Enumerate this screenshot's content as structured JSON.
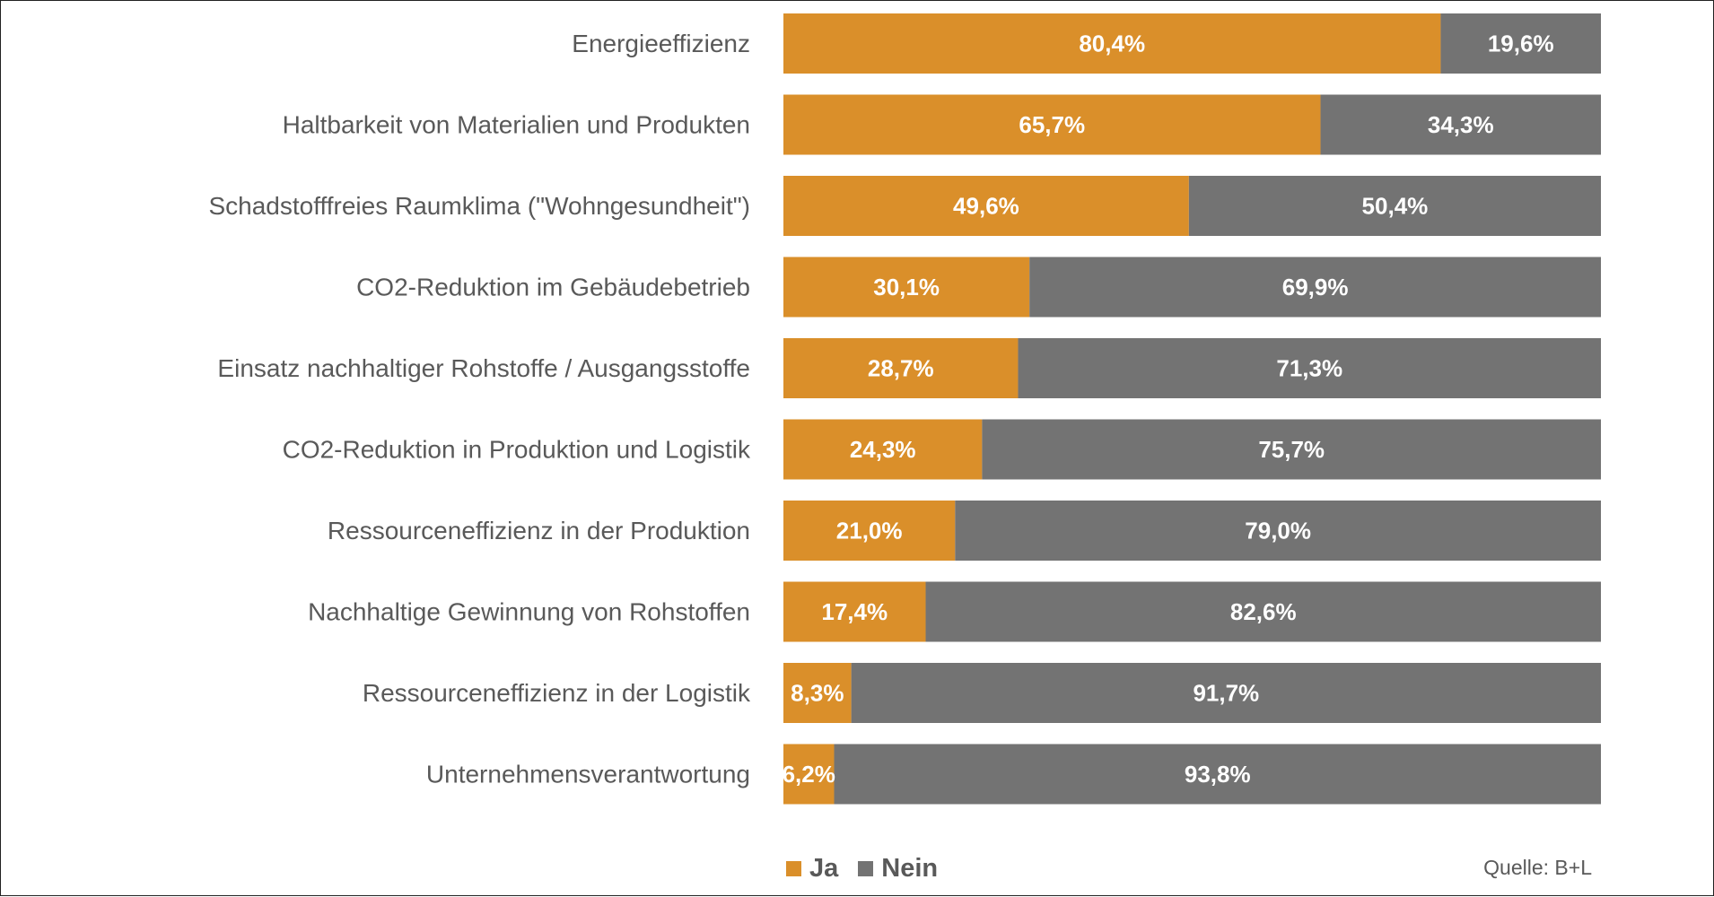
{
  "colors": {
    "ja": "#DA8F2A",
    "nein": "#737373",
    "label_text": "#595959",
    "value_text": "#FFFFFF"
  },
  "legend": {
    "ja_label": "Ja",
    "nein_label": "Nein"
  },
  "source": "Quelle: B+L",
  "chart_data": {
    "type": "bar",
    "orientation": "horizontal",
    "stacked": "100%",
    "title": "",
    "xlabel": "",
    "ylabel": "",
    "xlim": [
      0,
      100
    ],
    "grid": false,
    "legend_position": "bottom",
    "categories": [
      "Energieeffizienz",
      "Haltbarkeit von Materialien und Produkten",
      "Schadstofffreies Raumklima (\"Wohngesundheit\")",
      "CO2-Reduktion im Gebäudebetrieb",
      "Einsatz nachhaltiger Rohstoffe / Ausgangsstoffe",
      "CO2-Reduktion in Produktion und Logistik",
      "Ressourceneffizienz in der Produktion",
      "Nachhaltige Gewinnung von Rohstoffen",
      "Ressourceneffizienz in der Logistik",
      "Unternehmensverantwortung"
    ],
    "series": [
      {
        "name": "Ja",
        "values": [
          80.4,
          65.7,
          49.6,
          30.1,
          28.7,
          24.3,
          21.0,
          17.4,
          8.3,
          6.2
        ],
        "labels": [
          "80,4%",
          "65,7%",
          "49,6%",
          "30,1%",
          "28,7%",
          "24,3%",
          "21,0%",
          "17,4%",
          "8,3%",
          "6,2%"
        ]
      },
      {
        "name": "Nein",
        "values": [
          19.6,
          34.3,
          50.4,
          69.9,
          71.3,
          75.7,
          79.0,
          82.6,
          91.7,
          93.8
        ],
        "labels": [
          "19,6%",
          "34,3%",
          "50,4%",
          "69,9%",
          "71,3%",
          "75,7%",
          "79,0%",
          "82,6%",
          "91,7%",
          "93,8%"
        ]
      }
    ]
  }
}
